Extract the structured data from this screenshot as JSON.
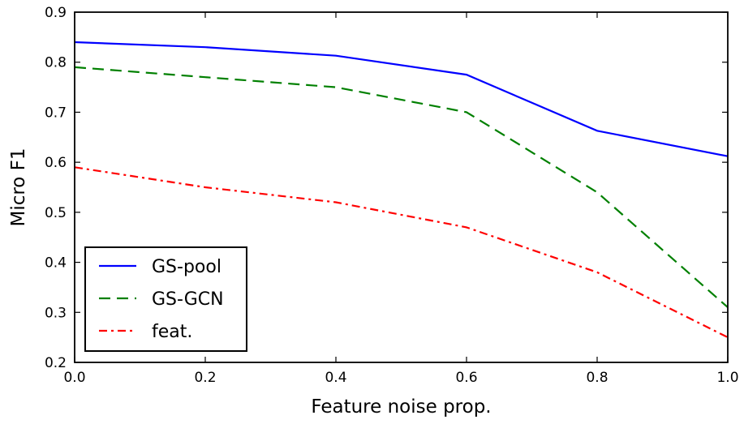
{
  "chart_data": {
    "type": "line",
    "title": "",
    "xlabel": "Feature noise prop.",
    "ylabel": "Micro F1",
    "xlim": [
      0.0,
      1.0
    ],
    "ylim": [
      0.2,
      0.9
    ],
    "x": [
      0.0,
      0.2,
      0.4,
      0.6,
      0.8,
      1.0
    ],
    "xticks": [
      "0.0",
      "0.2",
      "0.4",
      "0.6",
      "0.8",
      "1.0"
    ],
    "yticks": [
      "0.2",
      "0.3",
      "0.4",
      "0.5",
      "0.6",
      "0.7",
      "0.8",
      "0.9"
    ],
    "grid": false,
    "legend_position": "lower-left",
    "series": [
      {
        "name": "GS-pool",
        "values": [
          0.84,
          0.83,
          0.813,
          0.775,
          0.663,
          0.612
        ],
        "color": "#0000ff",
        "style": "solid"
      },
      {
        "name": "GS-GCN",
        "values": [
          0.79,
          0.77,
          0.75,
          0.7,
          0.54,
          0.31
        ],
        "color": "#008000",
        "style": "dashed"
      },
      {
        "name": "feat.",
        "values": [
          0.59,
          0.55,
          0.52,
          0.47,
          0.38,
          0.25
        ],
        "color": "#ff0000",
        "style": "dashdot"
      }
    ]
  }
}
